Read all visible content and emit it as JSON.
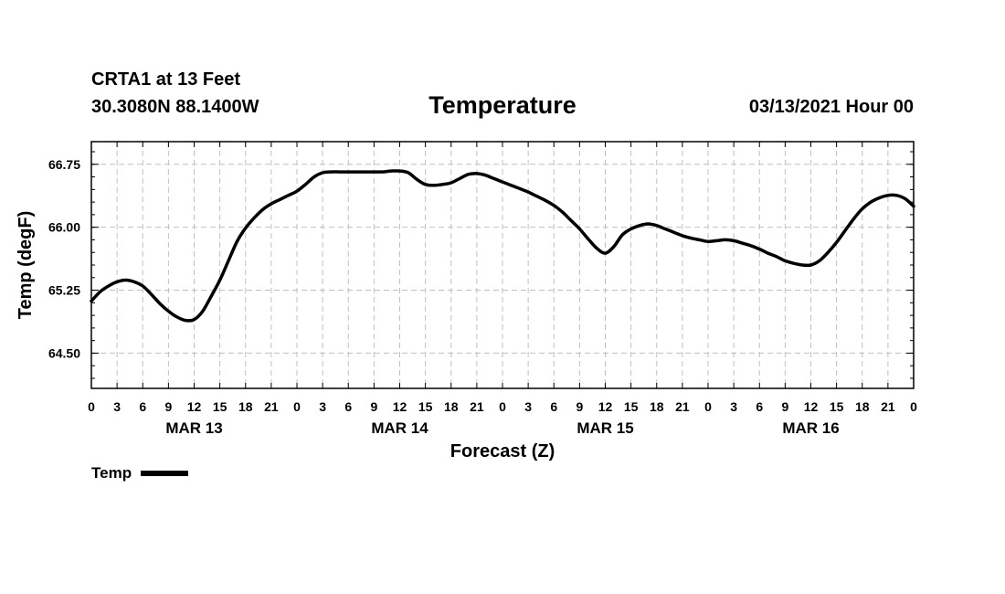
{
  "header": {
    "station": "CRTA1 at 13 Feet",
    "coords": "30.3080N 88.1400W",
    "title": "Temperature",
    "run": "03/13/2021 Hour 00"
  },
  "legend": {
    "label": "Temp"
  },
  "chart_data": {
    "type": "line",
    "title": "Temperature",
    "xlabel": "Forecast (Z)",
    "ylabel": "Temp (degF)",
    "xlim": [
      0,
      96
    ],
    "ylim": [
      64.08,
      67.02
    ],
    "yticks": [
      64.5,
      65.25,
      66.0,
      66.75
    ],
    "ytick_labels": [
      "64.50",
      "65.25",
      "66.00",
      "66.75"
    ],
    "xticks": [
      0,
      3,
      6,
      9,
      12,
      15,
      18,
      21,
      24,
      27,
      30,
      33,
      36,
      39,
      42,
      45,
      48,
      51,
      54,
      57,
      60,
      63,
      66,
      69,
      72,
      75,
      78,
      81,
      84,
      87,
      90,
      93,
      96
    ],
    "xtick_labels": [
      "0",
      "3",
      "6",
      "9",
      "12",
      "15",
      "18",
      "21",
      "0",
      "3",
      "6",
      "9",
      "12",
      "15",
      "18",
      "21",
      "0",
      "3",
      "6",
      "9",
      "12",
      "15",
      "18",
      "21",
      "0",
      "3",
      "6",
      "9",
      "12",
      "15",
      "18",
      "21",
      "0"
    ],
    "date_labels": [
      {
        "hour": 12,
        "label": "MAR 13"
      },
      {
        "hour": 36,
        "label": "MAR 14"
      },
      {
        "hour": 60,
        "label": "MAR 15"
      },
      {
        "hour": 84,
        "label": "MAR 16"
      }
    ],
    "grid": true,
    "legend_position": "bottom-left",
    "series": [
      {
        "name": "Temp",
        "color": "#000000",
        "x": [
          0,
          1,
          2,
          3,
          4,
          5,
          6,
          7,
          8,
          9,
          10,
          11,
          12,
          13,
          14,
          15,
          16,
          17,
          18,
          19,
          20,
          21,
          22,
          23,
          24,
          25,
          26,
          27,
          28,
          29,
          30,
          31,
          32,
          33,
          34,
          35,
          36,
          37,
          38,
          39,
          40,
          41,
          42,
          43,
          44,
          45,
          46,
          47,
          48,
          49,
          50,
          51,
          52,
          53,
          54,
          55,
          56,
          57,
          58,
          59,
          60,
          61,
          62,
          63,
          64,
          65,
          66,
          67,
          68,
          69,
          70,
          71,
          72,
          73,
          74,
          75,
          76,
          77,
          78,
          79,
          80,
          81,
          82,
          83,
          84,
          85,
          86,
          87,
          88,
          89,
          90,
          91,
          92,
          93,
          94,
          95,
          96
        ],
        "values": [
          65.12,
          65.23,
          65.3,
          65.35,
          65.37,
          65.35,
          65.3,
          65.2,
          65.09,
          65.0,
          64.93,
          64.89,
          64.9,
          65.0,
          65.18,
          65.37,
          65.6,
          65.83,
          65.99,
          66.11,
          66.21,
          66.28,
          66.33,
          66.38,
          66.43,
          66.51,
          66.6,
          66.65,
          66.66,
          66.66,
          66.66,
          66.66,
          66.66,
          66.66,
          66.66,
          66.67,
          66.67,
          66.65,
          66.57,
          66.51,
          66.5,
          66.51,
          66.53,
          66.58,
          66.63,
          66.64,
          66.62,
          66.58,
          66.54,
          66.5,
          66.46,
          66.42,
          66.37,
          66.32,
          66.26,
          66.18,
          66.08,
          65.98,
          65.86,
          65.75,
          65.69,
          65.77,
          65.91,
          65.98,
          66.02,
          66.04,
          66.02,
          65.98,
          65.94,
          65.9,
          65.87,
          65.85,
          65.83,
          65.84,
          65.85,
          65.84,
          65.81,
          65.78,
          65.74,
          65.69,
          65.65,
          65.6,
          65.57,
          65.55,
          65.55,
          65.6,
          65.7,
          65.82,
          65.96,
          66.1,
          66.22,
          66.3,
          66.35,
          66.38,
          66.38,
          66.34,
          66.25
        ]
      }
    ]
  }
}
